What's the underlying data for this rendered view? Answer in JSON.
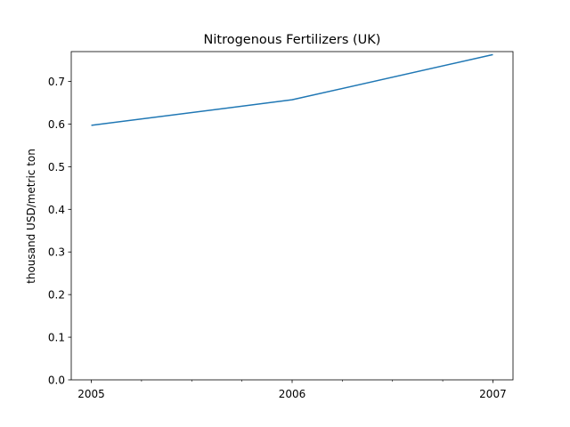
{
  "chart_data": {
    "type": "line",
    "title": "Nitrogenous Fertilizers (UK)",
    "xlabel": "",
    "ylabel": "thousand USD/metric ton",
    "x": [
      2005,
      2006,
      2007
    ],
    "series": [
      {
        "values": [
          0.597,
          0.657,
          0.763
        ],
        "color": "#1f77b4"
      }
    ],
    "xlim": [
      2004.9,
      2007.1
    ],
    "ylim": [
      0.0,
      0.77
    ],
    "x_ticks": [
      "2005",
      "2006",
      "2007"
    ],
    "x_minor_ticks": [
      2005.25,
      2005.5,
      2005.75,
      2006.25,
      2006.5,
      2006.75
    ],
    "y_ticks": [
      "0.0",
      "0.1",
      "0.2",
      "0.3",
      "0.4",
      "0.5",
      "0.6",
      "0.7"
    ],
    "grid": false,
    "legend": "none"
  }
}
